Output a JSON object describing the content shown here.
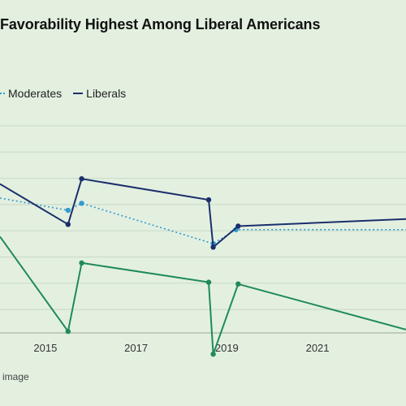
{
  "page": {
    "background": "#e3f0e0",
    "footer_note": "image"
  },
  "chart_data": {
    "type": "line",
    "title": "Favorability Highest Among Liberal Americans",
    "xlabel": "",
    "ylabel": "",
    "xlim": [
      2014.0,
      2022.95
    ],
    "ylim": [
      0,
      100
    ],
    "grid": true,
    "legend_position": "top-left",
    "x_ticks": [
      2015,
      2017,
      2019,
      2021
    ],
    "series": [
      {
        "name": "Moderates",
        "color": "#3399cc",
        "style": "dotted",
        "points": [
          {
            "x": 2014.0,
            "y": 63
          },
          {
            "x": 2015.5,
            "y": 56
          },
          {
            "x": 2015.8,
            "y": 60
          },
          {
            "x": 2018.7,
            "y": 37
          },
          {
            "x": 2019.2,
            "y": 45
          },
          {
            "x": 2022.95,
            "y": 45
          }
        ]
      },
      {
        "name": "Liberals",
        "color": "#1a2f6b",
        "style": "solid",
        "points": [
          {
            "x": 2014.0,
            "y": 71
          },
          {
            "x": 2015.5,
            "y": 48
          },
          {
            "x": 2015.8,
            "y": 74
          },
          {
            "x": 2018.6,
            "y": 62
          },
          {
            "x": 2018.7,
            "y": 35
          },
          {
            "x": 2019.25,
            "y": 47
          },
          {
            "x": 2022.95,
            "y": 51
          }
        ]
      },
      {
        "name": "",
        "color": "#1f8a5a",
        "style": "solid",
        "points": [
          {
            "x": 2014.0,
            "y": 41
          },
          {
            "x": 2015.5,
            "y": -13
          },
          {
            "x": 2015.8,
            "y": 26
          },
          {
            "x": 2018.6,
            "y": 15
          },
          {
            "x": 2018.7,
            "y": -26
          },
          {
            "x": 2019.25,
            "y": 14
          },
          {
            "x": 2022.95,
            "y": -12
          }
        ]
      }
    ]
  }
}
